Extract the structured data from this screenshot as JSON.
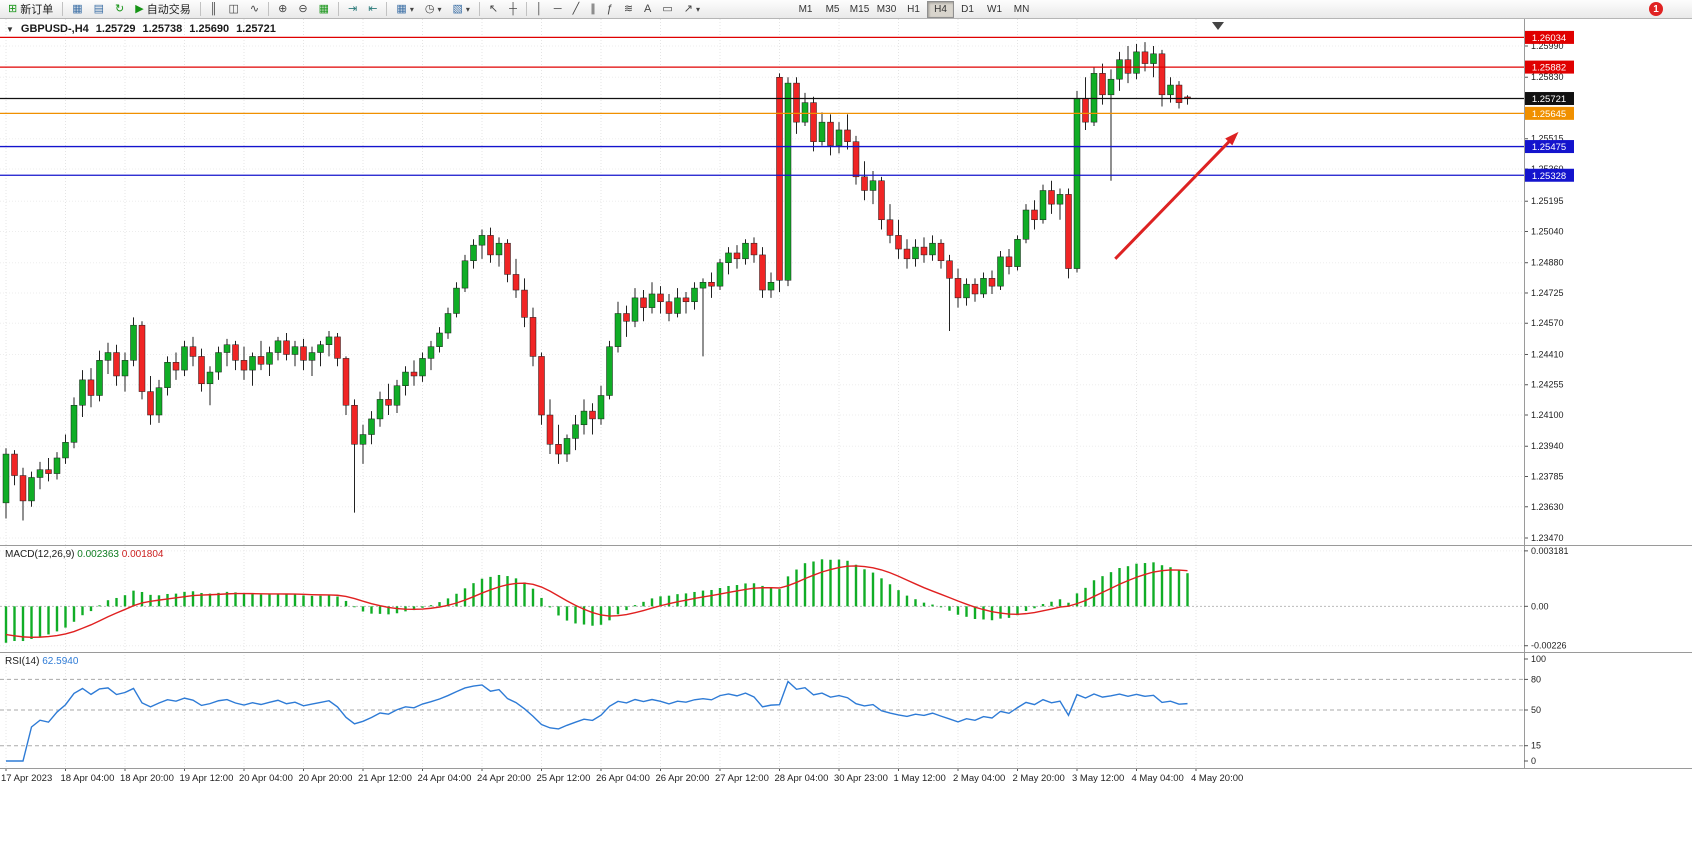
{
  "toolbar": {
    "new_order_label": "新订单",
    "autotrading_label": "自动交易",
    "timeframes": [
      "M1",
      "M5",
      "M15",
      "M30",
      "H1",
      "H4",
      "D1",
      "W1",
      "MN"
    ],
    "active_timeframe": "H4",
    "notification_badge": "1"
  },
  "icons": {
    "one_click_arrow": "▼",
    "new_order": "⊞",
    "new_chart": "▦",
    "profiles": "▤",
    "refresh": "↻",
    "autotrading_play": "▶",
    "bar_chart": "║",
    "candle_chart": "◫",
    "line_chart": "∿",
    "zoom_in": "⊕",
    "zoom_out": "⊖",
    "tile_windows": "▦",
    "auto_scroll": "⇥",
    "chart_shift": "⇤",
    "periods": "◷",
    "templates": "▧",
    "dropdown": "▾",
    "cursor": "↖",
    "crosshair": "┼",
    "vline": "│",
    "hline": "─",
    "trendline": "╱",
    "channel": "∥",
    "fibonacci": "ƒ",
    "cycles": "≋",
    "text": "A",
    "text_label": "▭",
    "arrows": "↗"
  },
  "chart": {
    "symbol_period": "GBPUSD-,H4",
    "open": "1.25729",
    "high": "1.25738",
    "low": "1.25690",
    "close": "1.25721"
  },
  "macd_panel": {
    "name": "MACD(12,26,9)",
    "value": "0.002363",
    "signal": "0.001804",
    "scale_top": "0.003181",
    "scale_zero": "0.00",
    "scale_bottom": "-0.00226"
  },
  "rsi_panel": {
    "name": "RSI(14)",
    "value": "62.5940"
  },
  "chart_data": {
    "type": "candlestick",
    "symbol": "GBPUSD",
    "timeframe": "H4",
    "colors": {
      "up": "#10ad26",
      "down": "#f02525",
      "wick": "#222222",
      "macd_histogram": "#10ad26",
      "macd_signal": "#e02020",
      "rsi_line": "#2e7bd6",
      "arrow": "#dd2222",
      "grid": "#e4e4e4"
    },
    "y_axis": {
      "range": [
        1.234342,
        1.261283
      ],
      "ticks": [
        1.2599,
        1.2583,
        1.25515,
        1.2536,
        1.25195,
        1.2504,
        1.2488,
        1.24725,
        1.2457,
        1.2441,
        1.24255,
        1.241,
        1.2394,
        1.23785,
        1.2363,
        1.2347
      ]
    },
    "hlines": [
      {
        "name": "resistance-line-upper",
        "price": 1.26034,
        "color": "#e00000",
        "label": "1.26034"
      },
      {
        "name": "resistance-line-lower",
        "price": 1.25882,
        "color": "#e00000",
        "label": "1.25882"
      },
      {
        "name": "current-price-line",
        "price": 1.25721,
        "color": "#111111",
        "label": "1.25721"
      },
      {
        "name": "orange-pivot-line",
        "price": 1.25645,
        "color": "#f09000",
        "label": "1.25645"
      },
      {
        "name": "support-line-upper",
        "price": 1.25475,
        "color": "#1414cd",
        "label": "1.25475"
      },
      {
        "name": "support-line-lower",
        "price": 1.25328,
        "color": "#1414cd",
        "label": "1.25328"
      }
    ],
    "time_labels": [
      {
        "text": "17 Apr 2023",
        "bar": 0
      },
      {
        "text": "18 Apr 04:00",
        "bar": 7
      },
      {
        "text": "18 Apr 20:00",
        "bar": 14
      },
      {
        "text": "19 Apr 12:00",
        "bar": 21
      },
      {
        "text": "20 Apr 04:00",
        "bar": 28
      },
      {
        "text": "20 Apr 20:00",
        "bar": 35
      },
      {
        "text": "21 Apr 12:00",
        "bar": 42
      },
      {
        "text": "24 Apr 04:00",
        "bar": 49
      },
      {
        "text": "24 Apr 20:00",
        "bar": 56
      },
      {
        "text": "25 Apr 12:00",
        "bar": 63
      },
      {
        "text": "26 Apr 04:00",
        "bar": 70
      },
      {
        "text": "26 Apr 20:00",
        "bar": 77
      },
      {
        "text": "27 Apr 12:00",
        "bar": 84
      },
      {
        "text": "28 Apr 04:00",
        "bar": 91
      },
      {
        "text": "30 Apr 23:00",
        "bar": 98
      },
      {
        "text": "1 May 12:00",
        "bar": 105
      },
      {
        "text": "2 May 04:00",
        "bar": 112
      },
      {
        "text": "2 May 20:00",
        "bar": 119
      },
      {
        "text": "3 May 12:00",
        "bar": 126
      },
      {
        "text": "4 May 04:00",
        "bar": 133
      },
      {
        "text": "4 May 20:00",
        "bar": 140
      }
    ],
    "candles": [
      [
        1.2365,
        1.2393,
        1.2357,
        1.239
      ],
      [
        1.239,
        1.2392,
        1.2374,
        1.2379
      ],
      [
        1.2379,
        1.2383,
        1.2356,
        1.2366
      ],
      [
        1.2366,
        1.2381,
        1.2363,
        1.2378
      ],
      [
        1.2378,
        1.2386,
        1.2372,
        1.2382
      ],
      [
        1.2382,
        1.2388,
        1.2376,
        1.238
      ],
      [
        1.238,
        1.2391,
        1.2377,
        1.2388
      ],
      [
        1.2388,
        1.24,
        1.2385,
        1.2396
      ],
      [
        1.2396,
        1.2419,
        1.2393,
        1.2415
      ],
      [
        1.2415,
        1.2433,
        1.2409,
        1.2428
      ],
      [
        1.2428,
        1.2434,
        1.2414,
        1.242
      ],
      [
        1.242,
        1.2443,
        1.2417,
        1.2438
      ],
      [
        1.2438,
        1.2447,
        1.2431,
        1.2442
      ],
      [
        1.2442,
        1.2446,
        1.2425,
        1.243
      ],
      [
        1.243,
        1.2442,
        1.2422,
        1.2438
      ],
      [
        1.2438,
        1.246,
        1.2435,
        1.2456
      ],
      [
        1.2456,
        1.2458,
        1.2418,
        1.2422
      ],
      [
        1.2422,
        1.243,
        1.2405,
        1.241
      ],
      [
        1.241,
        1.2428,
        1.2406,
        1.2424
      ],
      [
        1.2424,
        1.244,
        1.242,
        1.2437
      ],
      [
        1.2437,
        1.2442,
        1.2428,
        1.2433
      ],
      [
        1.2433,
        1.2448,
        1.243,
        1.2445
      ],
      [
        1.2445,
        1.245,
        1.2435,
        1.244
      ],
      [
        1.244,
        1.2444,
        1.2422,
        1.2426
      ],
      [
        1.2426,
        1.2435,
        1.2415,
        1.2432
      ],
      [
        1.2432,
        1.2445,
        1.2428,
        1.2442
      ],
      [
        1.2442,
        1.2449,
        1.2435,
        1.2446
      ],
      [
        1.2446,
        1.2448,
        1.2433,
        1.2438
      ],
      [
        1.2438,
        1.2445,
        1.2428,
        1.2433
      ],
      [
        1.2433,
        1.2442,
        1.2425,
        1.244
      ],
      [
        1.244,
        1.2448,
        1.2433,
        1.2436
      ],
      [
        1.2436,
        1.2445,
        1.243,
        1.2442
      ],
      [
        1.2442,
        1.245,
        1.2438,
        1.2448
      ],
      [
        1.2448,
        1.2452,
        1.2438,
        1.2441
      ],
      [
        1.2441,
        1.2448,
        1.2435,
        1.2445
      ],
      [
        1.2445,
        1.2449,
        1.2433,
        1.2438
      ],
      [
        1.2438,
        1.2445,
        1.243,
        1.2442
      ],
      [
        1.2442,
        1.2448,
        1.2435,
        1.2446
      ],
      [
        1.2446,
        1.2453,
        1.244,
        1.245
      ],
      [
        1.245,
        1.2452,
        1.2435,
        1.2439
      ],
      [
        1.2439,
        1.244,
        1.241,
        1.2415
      ],
      [
        1.2415,
        1.2418,
        1.236,
        1.2395
      ],
      [
        1.2395,
        1.2405,
        1.2385,
        1.24
      ],
      [
        1.24,
        1.2412,
        1.2395,
        1.2408
      ],
      [
        1.2408,
        1.2422,
        1.2404,
        1.2418
      ],
      [
        1.2418,
        1.2426,
        1.241,
        1.2415
      ],
      [
        1.2415,
        1.2428,
        1.2411,
        1.2425
      ],
      [
        1.2425,
        1.2435,
        1.242,
        1.2432
      ],
      [
        1.2432,
        1.2438,
        1.2425,
        1.243
      ],
      [
        1.243,
        1.2442,
        1.2427,
        1.2439
      ],
      [
        1.2439,
        1.2448,
        1.2433,
        1.2445
      ],
      [
        1.2445,
        1.2455,
        1.2442,
        1.2452
      ],
      [
        1.2452,
        1.2465,
        1.2449,
        1.2462
      ],
      [
        1.2462,
        1.2478,
        1.246,
        1.2475
      ],
      [
        1.2475,
        1.2492,
        1.2473,
        1.2489
      ],
      [
        1.2489,
        1.25,
        1.2485,
        1.2497
      ],
      [
        1.2497,
        1.2505,
        1.249,
        1.2502
      ],
      [
        1.2502,
        1.2506,
        1.2488,
        1.2492
      ],
      [
        1.2492,
        1.2501,
        1.2486,
        1.2498
      ],
      [
        1.2498,
        1.25,
        1.2478,
        1.2482
      ],
      [
        1.2482,
        1.249,
        1.247,
        1.2474
      ],
      [
        1.2474,
        1.248,
        1.2455,
        1.246
      ],
      [
        1.246,
        1.2465,
        1.2435,
        1.244
      ],
      [
        1.244,
        1.2442,
        1.2405,
        1.241
      ],
      [
        1.241,
        1.2418,
        1.239,
        1.2395
      ],
      [
        1.2395,
        1.2405,
        1.2385,
        1.239
      ],
      [
        1.239,
        1.24,
        1.2386,
        1.2398
      ],
      [
        1.2398,
        1.241,
        1.2392,
        1.2405
      ],
      [
        1.2405,
        1.2418,
        1.24,
        1.2412
      ],
      [
        1.2412,
        1.2416,
        1.24,
        1.2408
      ],
      [
        1.2408,
        1.2425,
        1.2405,
        1.242
      ],
      [
        1.242,
        1.2448,
        1.2418,
        1.2445
      ],
      [
        1.2445,
        1.2468,
        1.2442,
        1.2462
      ],
      [
        1.2462,
        1.2466,
        1.245,
        1.2458
      ],
      [
        1.2458,
        1.2475,
        1.2455,
        1.247
      ],
      [
        1.247,
        1.2474,
        1.2458,
        1.2465
      ],
      [
        1.2465,
        1.2478,
        1.2462,
        1.2472
      ],
      [
        1.2472,
        1.2476,
        1.2462,
        1.2468
      ],
      [
        1.2468,
        1.2472,
        1.2458,
        1.2462
      ],
      [
        1.2462,
        1.2475,
        1.246,
        1.247
      ],
      [
        1.247,
        1.2473,
        1.2462,
        1.2468
      ],
      [
        1.2468,
        1.2478,
        1.2464,
        1.2475
      ],
      [
        1.2475,
        1.248,
        1.244,
        1.2478
      ],
      [
        1.2478,
        1.2483,
        1.247,
        1.2476
      ],
      [
        1.2476,
        1.249,
        1.2474,
        1.2488
      ],
      [
        1.2488,
        1.2496,
        1.2482,
        1.2493
      ],
      [
        1.2493,
        1.2497,
        1.2485,
        1.249
      ],
      [
        1.249,
        1.25,
        1.2487,
        1.2498
      ],
      [
        1.2498,
        1.2501,
        1.2488,
        1.2492
      ],
      [
        1.2492,
        1.2496,
        1.247,
        1.2474
      ],
      [
        1.2474,
        1.2483,
        1.247,
        1.2478
      ],
      [
        1.2583,
        1.2585,
        1.2473,
        1.2479
      ],
      [
        1.2479,
        1.2583,
        1.2476,
        1.258
      ],
      [
        1.258,
        1.2583,
        1.2554,
        1.256
      ],
      [
        1.256,
        1.2575,
        1.2558,
        1.257
      ],
      [
        1.257,
        1.2573,
        1.2545,
        1.255
      ],
      [
        1.255,
        1.2565,
        1.2548,
        1.256
      ],
      [
        1.256,
        1.2564,
        1.2543,
        1.2548
      ],
      [
        1.2548,
        1.256,
        1.2544,
        1.2556
      ],
      [
        1.2556,
        1.2564,
        1.2546,
        1.255
      ],
      [
        1.255,
        1.2553,
        1.2528,
        1.2532
      ],
      [
        1.2532,
        1.254,
        1.252,
        1.2525
      ],
      [
        1.2525,
        1.2535,
        1.2518,
        1.253
      ],
      [
        1.253,
        1.2532,
        1.2505,
        1.251
      ],
      [
        1.251,
        1.2518,
        1.2498,
        1.2502
      ],
      [
        1.2502,
        1.251,
        1.249,
        1.2495
      ],
      [
        1.2495,
        1.25,
        1.2485,
        1.249
      ],
      [
        1.249,
        1.25,
        1.2486,
        1.2496
      ],
      [
        1.2496,
        1.2501,
        1.2488,
        1.2492
      ],
      [
        1.2492,
        1.2502,
        1.2489,
        1.2498
      ],
      [
        1.2498,
        1.25,
        1.2485,
        1.2489
      ],
      [
        1.2489,
        1.2492,
        1.2453,
        1.248
      ],
      [
        1.248,
        1.2485,
        1.2465,
        1.247
      ],
      [
        1.247,
        1.248,
        1.2466,
        1.2477
      ],
      [
        1.2477,
        1.248,
        1.2468,
        1.2472
      ],
      [
        1.2472,
        1.2483,
        1.247,
        1.248
      ],
      [
        1.248,
        1.2484,
        1.2472,
        1.2476
      ],
      [
        1.2476,
        1.2494,
        1.2474,
        1.2491
      ],
      [
        1.2491,
        1.2495,
        1.2482,
        1.2486
      ],
      [
        1.2486,
        1.2502,
        1.2484,
        1.25
      ],
      [
        1.25,
        1.2518,
        1.2498,
        1.2515
      ],
      [
        1.2515,
        1.252,
        1.2505,
        1.251
      ],
      [
        1.251,
        1.2528,
        1.2508,
        1.2525
      ],
      [
        1.2525,
        1.253,
        1.2513,
        1.2518
      ],
      [
        1.2518,
        1.2526,
        1.251,
        1.2523
      ],
      [
        1.2523,
        1.2526,
        1.248,
        1.2485
      ],
      [
        1.2485,
        1.2576,
        1.2483,
        1.2572
      ],
      [
        1.2572,
        1.2583,
        1.2556,
        1.256
      ],
      [
        1.256,
        1.2588,
        1.2558,
        1.2585
      ],
      [
        1.2585,
        1.259,
        1.2569,
        1.2574
      ],
      [
        1.2574,
        1.2587,
        1.253,
        1.2582
      ],
      [
        1.2582,
        1.2596,
        1.2576,
        1.2592
      ],
      [
        1.2592,
        1.2599,
        1.258,
        1.2585
      ],
      [
        1.2585,
        1.26,
        1.2582,
        1.2596
      ],
      [
        1.2596,
        1.2601,
        1.2586,
        1.259
      ],
      [
        1.259,
        1.2599,
        1.2583,
        1.2595
      ],
      [
        1.2595,
        1.2597,
        1.2568,
        1.2574
      ],
      [
        1.2574,
        1.2583,
        1.257,
        1.2579
      ],
      [
        1.2579,
        1.2581,
        1.2567,
        1.257
      ],
      [
        1.25729,
        1.25738,
        1.2569,
        1.25721
      ]
    ],
    "indicators": {
      "macd": {
        "params": [
          12,
          26,
          9
        ],
        "display_value": 0.002363,
        "display_signal": 0.001804,
        "scale_min": -0.00226,
        "scale_max": 0.003181
      },
      "rsi": {
        "period": 14,
        "display_value": 62.594,
        "levels": [
          80,
          50,
          15
        ],
        "scale": [
          0,
          100
        ]
      }
    },
    "annotation_arrow": {
      "from": {
        "bar": 130.5,
        "price": 1.249
      },
      "to": {
        "bar": 145,
        "price": 1.2555
      }
    }
  }
}
